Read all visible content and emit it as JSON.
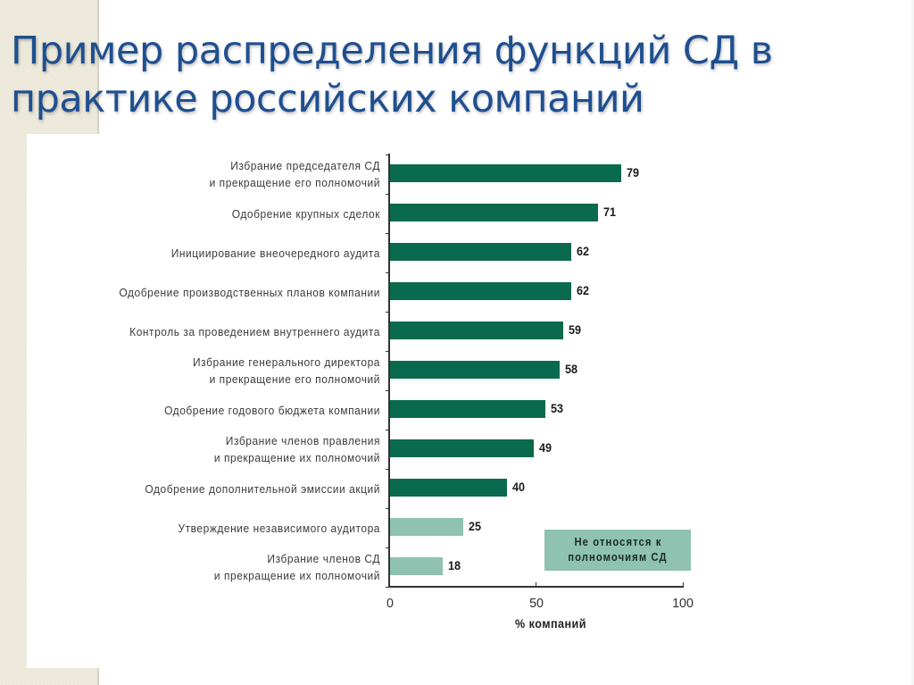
{
  "slide": {
    "title_lines": [
      "Пример распределения функций СД в",
      "практике российских компаний"
    ]
  },
  "colors": {
    "title": "#1f4f8f",
    "bar_core": "#0a6a4e",
    "bar_non_core": "#8fc2b1",
    "decoration": "#ebe7d8"
  },
  "chart_data": {
    "type": "bar",
    "orientation": "horizontal",
    "title": "",
    "xlabel": "% компаний",
    "ylabel": "",
    "xlim": [
      0,
      100
    ],
    "x_ticks": [
      "0",
      "50",
      "100"
    ],
    "grid": false,
    "categories": [
      "Избрание председателя СД и прекращение его полномочий",
      "Одобрение крупных сделок",
      "Инициирование внеочередного аудита",
      "Одобрение производственных планов компании",
      "Контроль за проведением внутреннего аудита",
      "Избрание генерального директора и прекращение его полномочий",
      "Одобрение годового бюджета компании",
      "Избрание членов правления и прекращение их полномочий",
      "Одобрение дополнительной эмиссии акций",
      "Утверждение независимого аудитора",
      "Избрание членов СД и прекращение их полномочий"
    ],
    "values": [
      79,
      71,
      62,
      62,
      59,
      58,
      53,
      49,
      40,
      25,
      18
    ],
    "bar_groups": [
      "core",
      "core",
      "core",
      "core",
      "core",
      "core",
      "core",
      "core",
      "core",
      "non-core",
      "non-core"
    ],
    "legend": {
      "position": "lower-right",
      "entries": [
        {
          "label": "Не относятся к полномочиям СД",
          "color": "#8fc2b1"
        }
      ]
    },
    "rows": [
      {
        "label_lines": [
          "Избрание председателя СД",
          "и прекращение его полномочий"
        ],
        "value": 79,
        "value_label": "79",
        "group": "core"
      },
      {
        "label_lines": [
          "Одобрение крупных сделок"
        ],
        "value": 71,
        "value_label": "71",
        "group": "core"
      },
      {
        "label_lines": [
          "Инициирование внеочередного аудита"
        ],
        "value": 62,
        "value_label": "62",
        "group": "core"
      },
      {
        "label_lines": [
          "Одобрение производственных планов компании"
        ],
        "value": 62,
        "value_label": "62",
        "group": "core"
      },
      {
        "label_lines": [
          "Контроль за проведением внутреннего аудита"
        ],
        "value": 59,
        "value_label": "59",
        "group": "core"
      },
      {
        "label_lines": [
          "Избрание генерального директора",
          "и прекращение его полномочий"
        ],
        "value": 58,
        "value_label": "58",
        "group": "core"
      },
      {
        "label_lines": [
          "Одобрение годового бюджета компании"
        ],
        "value": 53,
        "value_label": "53",
        "group": "core"
      },
      {
        "label_lines": [
          "Избрание членов правления",
          "и прекращение их полномочий"
        ],
        "value": 49,
        "value_label": "49",
        "group": "core"
      },
      {
        "label_lines": [
          "Одобрение дополнительной эмиссии акций"
        ],
        "value": 40,
        "value_label": "40",
        "group": "core"
      },
      {
        "label_lines": [
          "Утверждение независимого аудитора"
        ],
        "value": 25,
        "value_label": "25",
        "group": "non-core"
      },
      {
        "label_lines": [
          "Избрание членов СД",
          "и прекращение их полномочий"
        ],
        "value": 18,
        "value_label": "18",
        "group": "non-core"
      }
    ],
    "legend_lines": [
      "Не относятся к",
      "полномочиям СД"
    ]
  }
}
